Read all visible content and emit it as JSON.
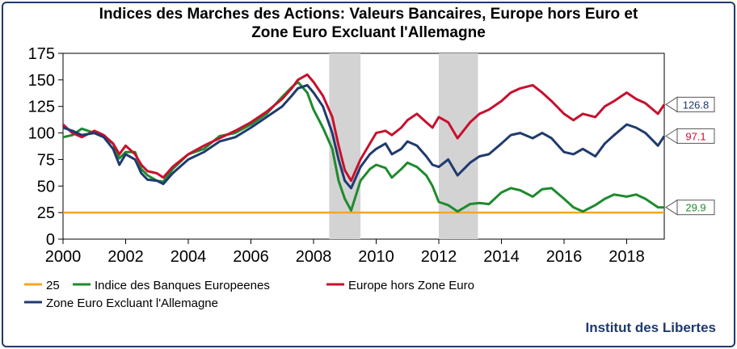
{
  "chart_data": {
    "type": "line",
    "title_line1": "Indices des Marches des Actions: Valeurs Bancaires,  Europe hors Euro et",
    "title_line2": "Zone Euro Excluant l'Allemagne",
    "xlabel": "",
    "ylabel": "",
    "xlim": [
      2000,
      2019.2
    ],
    "ylim": [
      0,
      175
    ],
    "x_ticks": [
      2000,
      2002,
      2004,
      2006,
      2008,
      2010,
      2012,
      2014,
      2016,
      2018
    ],
    "y_ticks": [
      0,
      25,
      50,
      75,
      100,
      125,
      150,
      175
    ],
    "shaded_periods": [
      [
        2008.5,
        2009.5
      ],
      [
        2012.0,
        2013.25
      ]
    ],
    "end_labels": [
      "126.8",
      "97.1",
      "29.9"
    ],
    "legend": [
      "25",
      "Indice des Banques Europeenes",
      "Europe hors Zone Euro",
      "Zone Euro Excluant l'Allemagne"
    ],
    "credit": "Institut des Libertes",
    "colors": {
      "hline": "#f5a623",
      "banks": "#1e8a2e",
      "europe_ex_euro": "#c8102e",
      "euro_ex_germany": "#1f3a6e",
      "shade": "#d3d3d3",
      "frame": "#1f3a6e"
    },
    "series": [
      {
        "name": "25",
        "x": [
          2000,
          2019.2
        ],
        "values": [
          25,
          25
        ]
      },
      {
        "name": "Indice des Banques Europeenes",
        "x": [
          2000,
          2000.3,
          2000.6,
          2001,
          2001.3,
          2001.6,
          2001.8,
          2002,
          2002.3,
          2002.5,
          2002.7,
          2003,
          2003.2,
          2003.5,
          2004,
          2004.5,
          2005,
          2005.5,
          2006,
          2006.5,
          2007,
          2007.3,
          2007.5,
          2007.8,
          2008,
          2008.3,
          2008.6,
          2008.8,
          2009,
          2009.2,
          2009.5,
          2009.8,
          2010,
          2010.3,
          2010.5,
          2010.8,
          2011,
          2011.3,
          2011.6,
          2011.8,
          2012,
          2012.3,
          2012.6,
          2013,
          2013.3,
          2013.6,
          2014,
          2014.3,
          2014.6,
          2015,
          2015.3,
          2015.6,
          2016,
          2016.3,
          2016.6,
          2017,
          2017.3,
          2017.6,
          2018,
          2018.3,
          2018.6,
          2019,
          2019.2
        ],
        "values": [
          96,
          98,
          104,
          100,
          96,
          90,
          76,
          82,
          82,
          66,
          60,
          55,
          54,
          66,
          80,
          85,
          97,
          100,
          108,
          118,
          134,
          143,
          148,
          138,
          122,
          105,
          85,
          55,
          38,
          27,
          55,
          66,
          70,
          67,
          58,
          66,
          72,
          68,
          60,
          50,
          35,
          32,
          26,
          33,
          34,
          33,
          44,
          48,
          46,
          40,
          47,
          48,
          38,
          30,
          26,
          32,
          38,
          42,
          40,
          42,
          38,
          30,
          29.9
        ]
      },
      {
        "name": "Europe hors Zone Euro",
        "x": [
          2000,
          2000.3,
          2000.6,
          2001,
          2001.3,
          2001.6,
          2001.8,
          2002,
          2002.3,
          2002.5,
          2002.7,
          2003,
          2003.2,
          2003.5,
          2004,
          2004.5,
          2005,
          2005.5,
          2006,
          2006.5,
          2007,
          2007.3,
          2007.5,
          2007.8,
          2008,
          2008.3,
          2008.6,
          2008.8,
          2009,
          2009.2,
          2009.5,
          2009.8,
          2010,
          2010.3,
          2010.5,
          2010.8,
          2011,
          2011.3,
          2011.6,
          2011.8,
          2012,
          2012.3,
          2012.6,
          2013,
          2013.3,
          2013.6,
          2014,
          2014.3,
          2014.6,
          2015,
          2015.3,
          2015.6,
          2016,
          2016.3,
          2016.6,
          2017,
          2017.3,
          2017.6,
          2018,
          2018.3,
          2018.6,
          2019,
          2019.2
        ],
        "values": [
          108,
          100,
          96,
          102,
          98,
          90,
          80,
          88,
          80,
          70,
          64,
          62,
          58,
          68,
          80,
          88,
          95,
          102,
          110,
          120,
          132,
          142,
          150,
          155,
          148,
          135,
          115,
          88,
          65,
          55,
          75,
          90,
          100,
          102,
          98,
          105,
          112,
          118,
          110,
          105,
          115,
          110,
          95,
          110,
          118,
          122,
          130,
          138,
          142,
          145,
          138,
          130,
          118,
          112,
          118,
          115,
          125,
          130,
          138,
          132,
          128,
          118,
          126.8
        ]
      },
      {
        "name": "Zone Euro Excluant l'Allemagne",
        "x": [
          2000,
          2000.3,
          2000.6,
          2001,
          2001.3,
          2001.6,
          2001.8,
          2002,
          2002.3,
          2002.5,
          2002.7,
          2003,
          2003.2,
          2003.5,
          2004,
          2004.5,
          2005,
          2005.5,
          2006,
          2006.5,
          2007,
          2007.3,
          2007.5,
          2007.8,
          2008,
          2008.3,
          2008.6,
          2008.8,
          2009,
          2009.2,
          2009.5,
          2009.8,
          2010,
          2010.3,
          2010.5,
          2010.8,
          2011,
          2011.3,
          2011.6,
          2011.8,
          2012,
          2012.3,
          2012.6,
          2013,
          2013.3,
          2013.6,
          2014,
          2014.3,
          2014.6,
          2015,
          2015.3,
          2015.6,
          2016,
          2016.3,
          2016.6,
          2017,
          2017.3,
          2017.6,
          2018,
          2018.3,
          2018.6,
          2019,
          2019.2
        ],
        "values": [
          105,
          102,
          98,
          100,
          96,
          85,
          70,
          80,
          75,
          62,
          56,
          55,
          52,
          62,
          75,
          82,
          92,
          96,
          105,
          115,
          125,
          135,
          142,
          145,
          138,
          125,
          100,
          75,
          55,
          48,
          68,
          80,
          85,
          90,
          80,
          85,
          92,
          88,
          78,
          70,
          68,
          75,
          60,
          72,
          78,
          80,
          90,
          98,
          100,
          95,
          100,
          95,
          82,
          80,
          85,
          78,
          90,
          98,
          108,
          105,
          100,
          88,
          97.1
        ]
      }
    ]
  }
}
